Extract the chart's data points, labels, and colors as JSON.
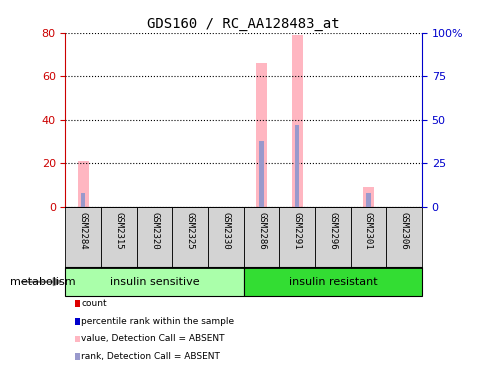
{
  "title": "GDS160 / RC_AA128483_at",
  "samples": [
    "GSM2284",
    "GSM2315",
    "GSM2320",
    "GSM2325",
    "GSM2330",
    "GSM2286",
    "GSM2291",
    "GSM2296",
    "GSM2301",
    "GSM2306"
  ],
  "pink_values": [
    21,
    0,
    0,
    0,
    0,
    66,
    79,
    0,
    9,
    0
  ],
  "blue_values": [
    8,
    0,
    0,
    0,
    0,
    38,
    47,
    0,
    8,
    0
  ],
  "ylim_left": [
    0,
    80
  ],
  "ylim_right": [
    0,
    100
  ],
  "yticks_left": [
    0,
    20,
    40,
    60,
    80
  ],
  "yticks_right": [
    0,
    25,
    50,
    75,
    100
  ],
  "yticklabels_right": [
    "0",
    "25",
    "50",
    "75",
    "100%"
  ],
  "group1_label": "insulin sensitive",
  "group2_label": "insulin resistant",
  "group1_color": "#aaffaa",
  "group2_color": "#33dd33",
  "group1_n": 5,
  "group2_n": 5,
  "pink_color": "#FFB6C1",
  "blue_color": "#9999CC",
  "background_color": "#FFFFFF",
  "sample_box_color": "#D3D3D3",
  "left_ytick_color": "#CC0000",
  "right_ytick_color": "#0000CC",
  "legend_entries": [
    "count",
    "percentile rank within the sample",
    "value, Detection Call = ABSENT",
    "rank, Detection Call = ABSENT"
  ],
  "legend_colors": [
    "#DD0000",
    "#0000CC",
    "#FFB6C1",
    "#9999CC"
  ],
  "metabolism_label": "metabolism",
  "pink_bar_width": 0.3,
  "blue_bar_width": 0.12
}
